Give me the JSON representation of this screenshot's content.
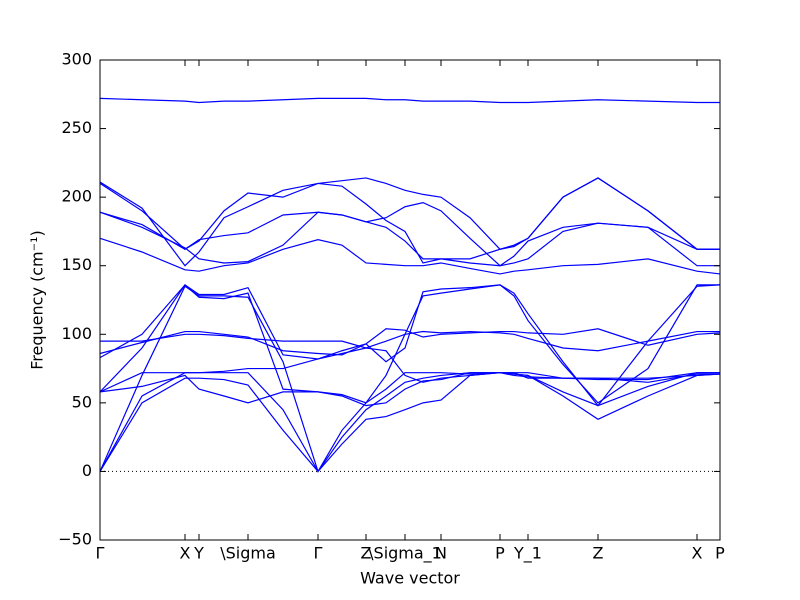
{
  "chart_data": {
    "type": "line",
    "xlabel": "Wave vector",
    "ylabel": "Frequency (cm⁻¹)",
    "color": "#0000ff",
    "zero_line": 0,
    "xlim": [
      0,
      6.2
    ],
    "ylim": [
      -50,
      300
    ],
    "yticks": [
      {
        "value": -50,
        "label": "−50"
      },
      0,
      50,
      100,
      150,
      200,
      250,
      300
    ],
    "xticks": [
      {
        "value": 0,
        "label": "Γ"
      },
      {
        "value": 0.85,
        "label": "X"
      },
      {
        "value": 0.99,
        "label": "Y"
      },
      {
        "value": 1.48,
        "label": "\\Sigma"
      },
      {
        "value": 2.18,
        "label": "Γ"
      },
      {
        "value": 2.66,
        "label": "Z"
      },
      {
        "value": 3.05,
        "label": "\\Sigma_1"
      },
      {
        "value": 3.41,
        "label": "N"
      },
      {
        "value": 4.0,
        "label": "P"
      },
      {
        "value": 4.28,
        "label": "Y_1"
      },
      {
        "value": 4.98,
        "label": "Z"
      },
      {
        "value": 5.97,
        "label": "X"
      },
      {
        "value": 6.2,
        "label": "P"
      }
    ],
    "x": [
      0,
      0.42,
      0.85,
      0.99,
      1.24,
      1.48,
      1.83,
      2.18,
      2.42,
      2.66,
      2.86,
      3.05,
      3.23,
      3.41,
      3.7,
      4.0,
      4.14,
      4.28,
      4.63,
      4.98,
      5.48,
      5.97,
      6.2
    ],
    "series": [
      {
        "values": [
          0,
          50,
          68,
          68,
          67,
          63,
          30,
          0,
          20,
          38,
          40,
          45,
          50,
          52,
          70,
          72,
          71,
          70,
          55,
          38,
          55,
          70,
          71
        ]
      },
      {
        "values": [
          0,
          55,
          72,
          72,
          72,
          72,
          45,
          0,
          25,
          45,
          55,
          65,
          68,
          70,
          72,
          72,
          71,
          70,
          58,
          48,
          62,
          72,
          72
        ]
      },
      {
        "values": [
          0,
          70,
          135,
          128,
          128,
          127,
          80,
          0,
          30,
          50,
          70,
          100,
          128,
          130,
          133,
          136,
          130,
          115,
          80,
          48,
          95,
          135,
          136
        ]
      },
      {
        "values": [
          58,
          90,
          136,
          127,
          126,
          130,
          60,
          58,
          56,
          50,
          60,
          72,
          72,
          72,
          71,
          72,
          70,
          69,
          68,
          68,
          65,
          71,
          71
        ]
      },
      {
        "values": [
          83,
          100,
          136,
          129,
          129,
          134,
          85,
          82,
          88,
          93,
          80,
          90,
          131,
          133,
          134,
          136,
          128,
          110,
          78,
          50,
          75,
          136,
          136
        ]
      },
      {
        "values": [
          86,
          94,
          102,
          102,
          100,
          98,
          88,
          86,
          85,
          93,
          104,
          103,
          98,
          100,
          101,
          102,
          102,
          101,
          100,
          104,
          92,
          100,
          101
        ]
      },
      {
        "values": [
          95,
          95,
          100,
          100,
          99,
          97,
          95,
          95,
          95,
          90,
          95,
          100,
          102,
          101,
          102,
          101,
          100,
          97,
          90,
          88,
          95,
          102,
          102
        ]
      },
      {
        "values": [
          58,
          72,
          72,
          72,
          73,
          75,
          75,
          82,
          86,
          90,
          88,
          70,
          65,
          68,
          70,
          72,
          72,
          68,
          68,
          67,
          67,
          72,
          72
        ]
      },
      {
        "values": [
          58,
          62,
          70,
          60,
          55,
          50,
          58,
          58,
          55,
          48,
          50,
          60,
          66,
          67,
          72,
          72,
          72,
          72,
          68,
          68,
          68,
          70,
          71
        ]
      },
      {
        "values": [
          170,
          160,
          147,
          146,
          150,
          152,
          162,
          169,
          165,
          152,
          151,
          150,
          150,
          152,
          148,
          144,
          146,
          147,
          150,
          151,
          155,
          146,
          144
        ]
      },
      {
        "values": [
          189,
          178,
          163,
          155,
          152,
          153,
          165,
          189,
          187,
          182,
          178,
          168,
          155,
          155,
          152,
          150,
          152,
          155,
          175,
          181,
          178,
          150,
          150
        ]
      },
      {
        "values": [
          189,
          180,
          162,
          169,
          172,
          174,
          187,
          189,
          187,
          182,
          185,
          193,
          196,
          190,
          170,
          150,
          157,
          168,
          178,
          181,
          178,
          162,
          162
        ]
      },
      {
        "values": [
          210,
          190,
          162,
          168,
          190,
          203,
          200,
          210,
          208,
          195,
          183,
          175,
          152,
          155,
          155,
          162,
          164,
          170,
          200,
          214,
          190,
          162,
          162
        ]
      },
      {
        "values": [
          211,
          192,
          150,
          160,
          185,
          193,
          205,
          210,
          212,
          214,
          210,
          205,
          202,
          200,
          185,
          162,
          165,
          170,
          200,
          214,
          190,
          162,
          162
        ]
      },
      {
        "values": [
          272,
          271,
          270,
          269,
          270,
          270,
          271,
          272,
          272,
          272,
          271,
          271,
          270,
          270,
          270,
          269,
          269,
          269,
          270,
          271,
          270,
          269,
          269
        ]
      }
    ]
  }
}
